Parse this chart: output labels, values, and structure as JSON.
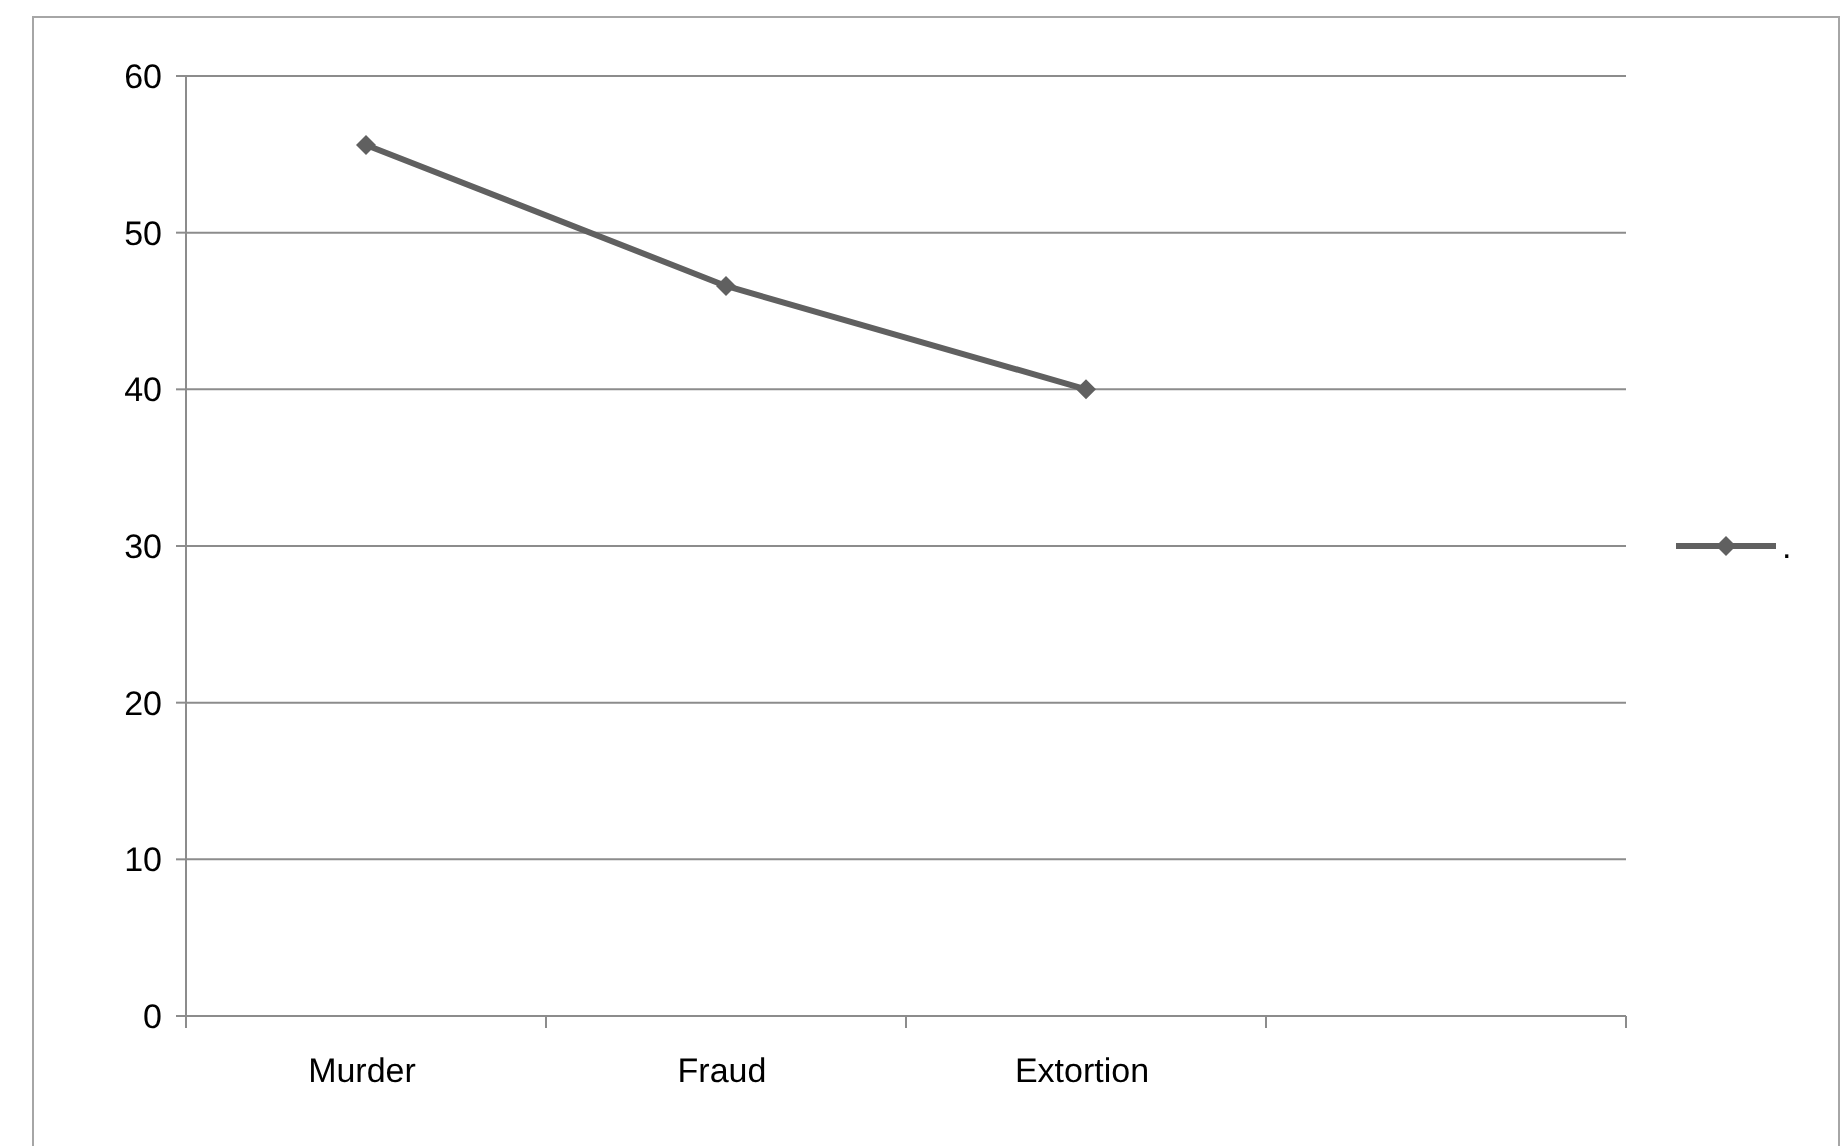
{
  "chart_data": {
    "type": "line",
    "categories": [
      "Murder",
      "Fraud",
      "Extortion",
      null
    ],
    "series": [
      {
        "name": ".",
        "color": "#606060",
        "values": [
          55.6,
          46.6,
          40,
          null
        ]
      }
    ],
    "ylim": [
      0,
      60
    ],
    "yticks": [
      0,
      10,
      20,
      30,
      40,
      50,
      60
    ],
    "grid": "y",
    "legend": "right",
    "marker": "diamond"
  }
}
